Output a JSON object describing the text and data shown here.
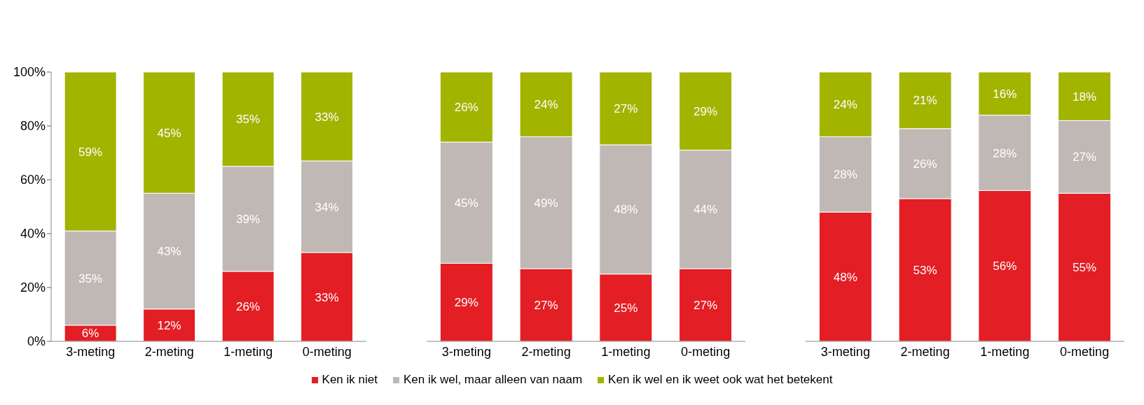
{
  "chart_data": [
    {
      "type": "bar",
      "stacked": true,
      "categories": [
        "3-meting",
        "2-meting",
        "1-meting",
        "0-meting"
      ],
      "ylim": [
        0,
        100
      ],
      "yticks": [
        {
          "value": 0,
          "label": "0%"
        },
        {
          "value": 20,
          "label": "20%"
        },
        {
          "value": 40,
          "label": "40%"
        },
        {
          "value": 60,
          "label": "60%"
        },
        {
          "value": 80,
          "label": "80%"
        },
        {
          "value": 100,
          "label": "100%"
        }
      ],
      "grid": false,
      "series": [
        {
          "color": "#e31e24",
          "values": [
            6,
            12,
            26,
            33
          ],
          "value_labels": [
            "6%",
            "12%",
            "26%",
            "33%"
          ]
        },
        {
          "color": "#bfb8b4",
          "values": [
            35,
            43,
            39,
            34
          ],
          "value_labels": [
            "35%",
            "43%",
            "39%",
            "34%"
          ]
        },
        {
          "color": "#a2b300",
          "values": [
            59,
            45,
            35,
            33
          ],
          "value_labels": [
            "59%",
            "45%",
            "35%",
            "33%"
          ]
        }
      ]
    },
    {
      "type": "bar",
      "stacked": true,
      "categories": [
        "3-meting",
        "2-meting",
        "1-meting",
        "0-meting"
      ],
      "ylim": [
        0,
        100
      ],
      "tick_labels": "x",
      "grid": false,
      "legend": "bottom",
      "series": [
        {
          "name": "Ken ik niet",
          "color": "#e31e24",
          "values": [
            29,
            27,
            25,
            27
          ],
          "value_labels": [
            "29%",
            "27%",
            "25%",
            "27%"
          ]
        },
        {
          "name": "Ken ik wel, maar alleen van naam",
          "color": "#bfb8b4",
          "values": [
            45,
            49,
            48,
            44
          ],
          "value_labels": [
            "45%",
            "49%",
            "48%",
            "44%"
          ]
        },
        {
          "name": "Ken ik wel en ik weet ook wat het betekent",
          "color": "#a2b300",
          "values": [
            26,
            24,
            27,
            29
          ],
          "value_labels": [
            "26%",
            "24%",
            "27%",
            "29%"
          ]
        }
      ]
    },
    {
      "type": "bar",
      "stacked": true,
      "categories": [
        "3-meting",
        "2-meting",
        "1-meting",
        "0-meting"
      ],
      "ylim": [
        0,
        100
      ],
      "tick_labels": "x",
      "grid": false,
      "series": [
        {
          "color": "#e31e24",
          "values": [
            48,
            53,
            56,
            55
          ],
          "value_labels": [
            "48%",
            "53%",
            "56%",
            "55%"
          ]
        },
        {
          "color": "#bfb8b4",
          "values": [
            28,
            26,
            28,
            27
          ],
          "value_labels": [
            "28%",
            "26%",
            "28%",
            "27%"
          ]
        },
        {
          "color": "#a2b300",
          "values": [
            24,
            21,
            16,
            18
          ],
          "value_labels": [
            "24%",
            "21%",
            "16%",
            "18%"
          ]
        }
      ]
    }
  ]
}
